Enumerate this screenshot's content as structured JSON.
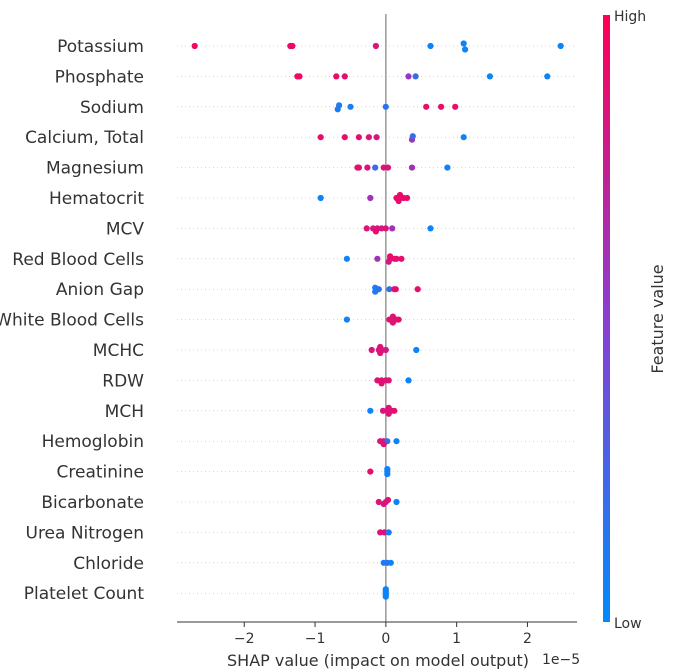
{
  "chart_data": {
    "type": "scatter",
    "subtype": "shap-beeswarm",
    "xlabel": "SHAP value (impact on model output)",
    "x_offset_label": "1e−5",
    "xlim": [
      -2.95,
      2.7
    ],
    "xticks": [
      -2,
      -1,
      0,
      1,
      2
    ],
    "xtick_labels": [
      "−2",
      "−1",
      "0",
      "1",
      "2"
    ],
    "grid": false,
    "legend": {
      "type": "colorbar",
      "title": "Feature value",
      "high_label": "High",
      "low_label": "Low",
      "high_color": "#ff0052",
      "low_color": "#008bfb",
      "placement": "right"
    },
    "features": [
      {
        "name": "Potassium",
        "points": [
          [
            -2.7,
            0.0,
            0.95
          ],
          [
            -1.35,
            0.0,
            0.92
          ],
          [
            -1.32,
            0.0,
            0.92
          ],
          [
            -0.14,
            0.0,
            0.85
          ],
          [
            0.63,
            0.0,
            0.05
          ],
          [
            1.1,
            -0.25,
            0.05
          ],
          [
            1.12,
            0.35,
            0.05
          ],
          [
            2.47,
            0.0,
            0.05
          ]
        ]
      },
      {
        "name": "Phosphate",
        "points": [
          [
            -1.25,
            0.0,
            0.95
          ],
          [
            -1.22,
            0.0,
            0.93
          ],
          [
            -0.7,
            0.0,
            0.9
          ],
          [
            -0.58,
            0.0,
            0.88
          ],
          [
            0.32,
            0.0,
            0.55
          ],
          [
            0.42,
            0.0,
            0.2
          ],
          [
            1.47,
            0.0,
            0.05
          ],
          [
            2.28,
            0.0,
            0.05
          ]
        ]
      },
      {
        "name": "Sodium",
        "points": [
          [
            -0.68,
            0.25,
            0.1
          ],
          [
            -0.66,
            -0.15,
            0.1
          ],
          [
            -0.5,
            0.0,
            0.1
          ],
          [
            0.0,
            0.0,
            0.15
          ],
          [
            0.57,
            0.0,
            0.9
          ],
          [
            0.78,
            0.0,
            0.9
          ],
          [
            0.98,
            0.0,
            0.9
          ]
        ]
      },
      {
        "name": "Calcium, Total",
        "points": [
          [
            -0.92,
            0.0,
            0.9
          ],
          [
            -0.58,
            0.0,
            0.9
          ],
          [
            -0.38,
            0.0,
            0.88
          ],
          [
            -0.24,
            0.0,
            0.85
          ],
          [
            -0.13,
            0.0,
            0.82
          ],
          [
            0.37,
            0.25,
            0.6
          ],
          [
            0.38,
            -0.1,
            0.2
          ],
          [
            1.1,
            0.0,
            0.05
          ]
        ]
      },
      {
        "name": "Magnesium",
        "points": [
          [
            -0.4,
            0.0,
            0.9
          ],
          [
            -0.38,
            0.0,
            0.88
          ],
          [
            -0.26,
            0.0,
            0.85
          ],
          [
            -0.15,
            0.0,
            0.2
          ],
          [
            -0.03,
            0.0,
            0.85
          ],
          [
            0.03,
            0.0,
            0.85
          ],
          [
            0.37,
            0.0,
            0.6
          ],
          [
            0.87,
            0.0,
            0.05
          ]
        ]
      },
      {
        "name": "Hematocrit",
        "points": [
          [
            -0.92,
            0.0,
            0.05
          ],
          [
            -0.22,
            0.0,
            0.6
          ],
          [
            0.18,
            0.3,
            0.9
          ],
          [
            0.15,
            0.0,
            0.9
          ],
          [
            0.2,
            0.0,
            0.9
          ],
          [
            0.25,
            0.0,
            0.9
          ],
          [
            0.3,
            0.0,
            0.9
          ],
          [
            0.2,
            -0.3,
            0.9
          ]
        ]
      },
      {
        "name": "MCV",
        "points": [
          [
            -0.27,
            0.0,
            0.85
          ],
          [
            -0.18,
            0.0,
            0.85
          ],
          [
            -0.12,
            0.0,
            0.85
          ],
          [
            -0.14,
            0.3,
            0.9
          ],
          [
            -0.06,
            0.0,
            0.8
          ],
          [
            0.0,
            0.0,
            0.85
          ],
          [
            0.09,
            0.0,
            0.6
          ],
          [
            0.63,
            0.0,
            0.05
          ]
        ]
      },
      {
        "name": "Red Blood Cells",
        "points": [
          [
            -0.55,
            0.0,
            0.05
          ],
          [
            -0.12,
            0.0,
            0.6
          ],
          [
            0.04,
            0.3,
            0.8
          ],
          [
            0.06,
            0.0,
            0.85
          ],
          [
            0.12,
            0.0,
            0.85
          ],
          [
            0.15,
            0.0,
            0.9
          ],
          [
            0.22,
            0.0,
            0.9
          ],
          [
            0.06,
            -0.25,
            0.9
          ]
        ]
      },
      {
        "name": "Anion Gap",
        "points": [
          [
            -0.15,
            0.25,
            0.1
          ],
          [
            -0.15,
            -0.15,
            0.1
          ],
          [
            -0.1,
            0.0,
            0.15
          ],
          [
            0.05,
            0.0,
            0.2
          ],
          [
            0.12,
            0.0,
            0.85
          ],
          [
            0.14,
            0.0,
            0.9
          ],
          [
            0.45,
            0.0,
            0.9
          ]
        ]
      },
      {
        "name": "White Blood Cells",
        "points": [
          [
            -0.55,
            0.0,
            0.05
          ],
          [
            0.05,
            0.0,
            0.85
          ],
          [
            0.1,
            0.0,
            0.85
          ],
          [
            0.14,
            0.0,
            0.9
          ],
          [
            0.18,
            0.0,
            0.9
          ],
          [
            0.1,
            0.3,
            0.85
          ],
          [
            0.1,
            -0.3,
            0.85
          ]
        ]
      },
      {
        "name": "MCHC",
        "points": [
          [
            -0.2,
            0.0,
            0.85
          ],
          [
            -0.1,
            0.0,
            0.85
          ],
          [
            -0.05,
            0.0,
            0.8
          ],
          [
            0.0,
            0.0,
            0.8
          ],
          [
            -0.08,
            0.3,
            0.85
          ],
          [
            -0.08,
            -0.3,
            0.85
          ],
          [
            0.43,
            0.0,
            0.05
          ]
        ]
      },
      {
        "name": "RDW",
        "points": [
          [
            -0.12,
            0.0,
            0.85
          ],
          [
            -0.06,
            0.0,
            0.85
          ],
          [
            0.0,
            0.0,
            0.85
          ],
          [
            0.04,
            0.0,
            0.85
          ],
          [
            -0.06,
            0.3,
            0.9
          ],
          [
            0.32,
            0.0,
            0.05
          ]
        ]
      },
      {
        "name": "MCH",
        "points": [
          [
            -0.22,
            0.0,
            0.05
          ],
          [
            -0.04,
            0.0,
            0.85
          ],
          [
            0.02,
            0.0,
            0.85
          ],
          [
            0.08,
            0.0,
            0.85
          ],
          [
            0.12,
            0.0,
            0.9
          ],
          [
            0.04,
            0.3,
            0.85
          ],
          [
            0.04,
            -0.3,
            0.85
          ]
        ]
      },
      {
        "name": "Hemoglobin",
        "points": [
          [
            -0.08,
            0.0,
            0.85
          ],
          [
            -0.03,
            0.0,
            0.85
          ],
          [
            0.02,
            0.0,
            0.2
          ],
          [
            0.15,
            0.0,
            0.05
          ],
          [
            -0.03,
            0.3,
            0.85
          ]
        ]
      },
      {
        "name": "Creatinine",
        "points": [
          [
            -0.22,
            0.0,
            0.9
          ],
          [
            0.02,
            0.25,
            0.05
          ],
          [
            0.02,
            0.0,
            0.05
          ],
          [
            0.02,
            -0.25,
            0.05
          ]
        ]
      },
      {
        "name": "Bicarbonate",
        "points": [
          [
            -0.1,
            0.0,
            0.85
          ],
          [
            -0.03,
            0.2,
            0.8
          ],
          [
            0.0,
            0.0,
            0.85
          ],
          [
            0.03,
            -0.2,
            0.85
          ],
          [
            0.15,
            0.0,
            0.05
          ]
        ]
      },
      {
        "name": "Urea Nitrogen",
        "points": [
          [
            -0.08,
            0.0,
            0.85
          ],
          [
            -0.02,
            0.0,
            0.85
          ],
          [
            0.04,
            0.0,
            0.1
          ]
        ]
      },
      {
        "name": "Chloride",
        "points": [
          [
            -0.03,
            0.0,
            0.1
          ],
          [
            0.02,
            0.0,
            0.15
          ],
          [
            0.07,
            0.0,
            0.05
          ]
        ]
      },
      {
        "name": "Platelet Count",
        "points": [
          [
            0.0,
            0.35,
            0.05
          ],
          [
            0.0,
            0.2,
            0.05
          ],
          [
            0.0,
            0.05,
            0.05
          ],
          [
            0.0,
            -0.1,
            0.05
          ],
          [
            0.0,
            -0.25,
            0.05
          ],
          [
            0.0,
            -0.4,
            0.05
          ]
        ]
      }
    ]
  }
}
